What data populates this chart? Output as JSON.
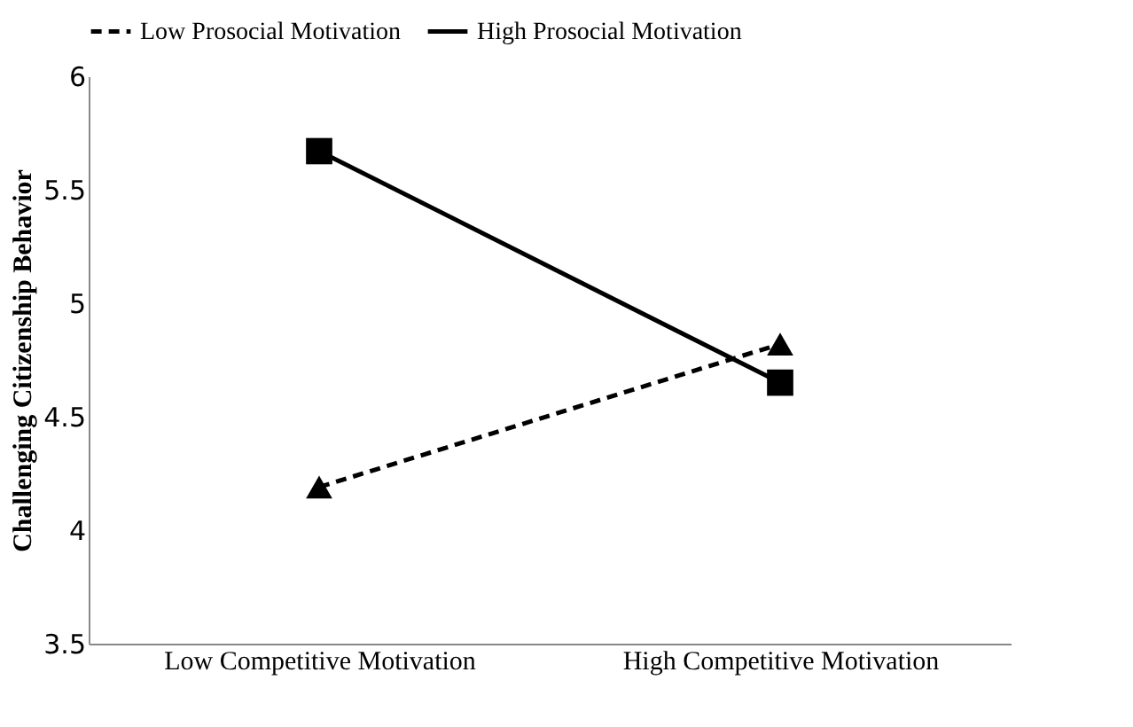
{
  "chart_data": {
    "type": "line",
    "ylabel": "Challenging Citizenship Behavior",
    "categories": [
      "Low Competitive Motivation",
      "High Competitive Motivation"
    ],
    "series": [
      {
        "name": "Low Prosocial Motivation",
        "color": "#000000",
        "values": [
          4.19,
          4.82
        ],
        "marker": "triangle",
        "line_style": "dashed"
      },
      {
        "name": "High Prosocial Motivation",
        "color": "#000000",
        "values": [
          5.67,
          4.65
        ],
        "marker": "square",
        "line_style": "solid"
      }
    ],
    "ylim": [
      3.5,
      6
    ],
    "yticks": [
      3.5,
      4,
      4.5,
      5,
      5.5,
      6
    ],
    "grid": false,
    "legend": "top"
  }
}
